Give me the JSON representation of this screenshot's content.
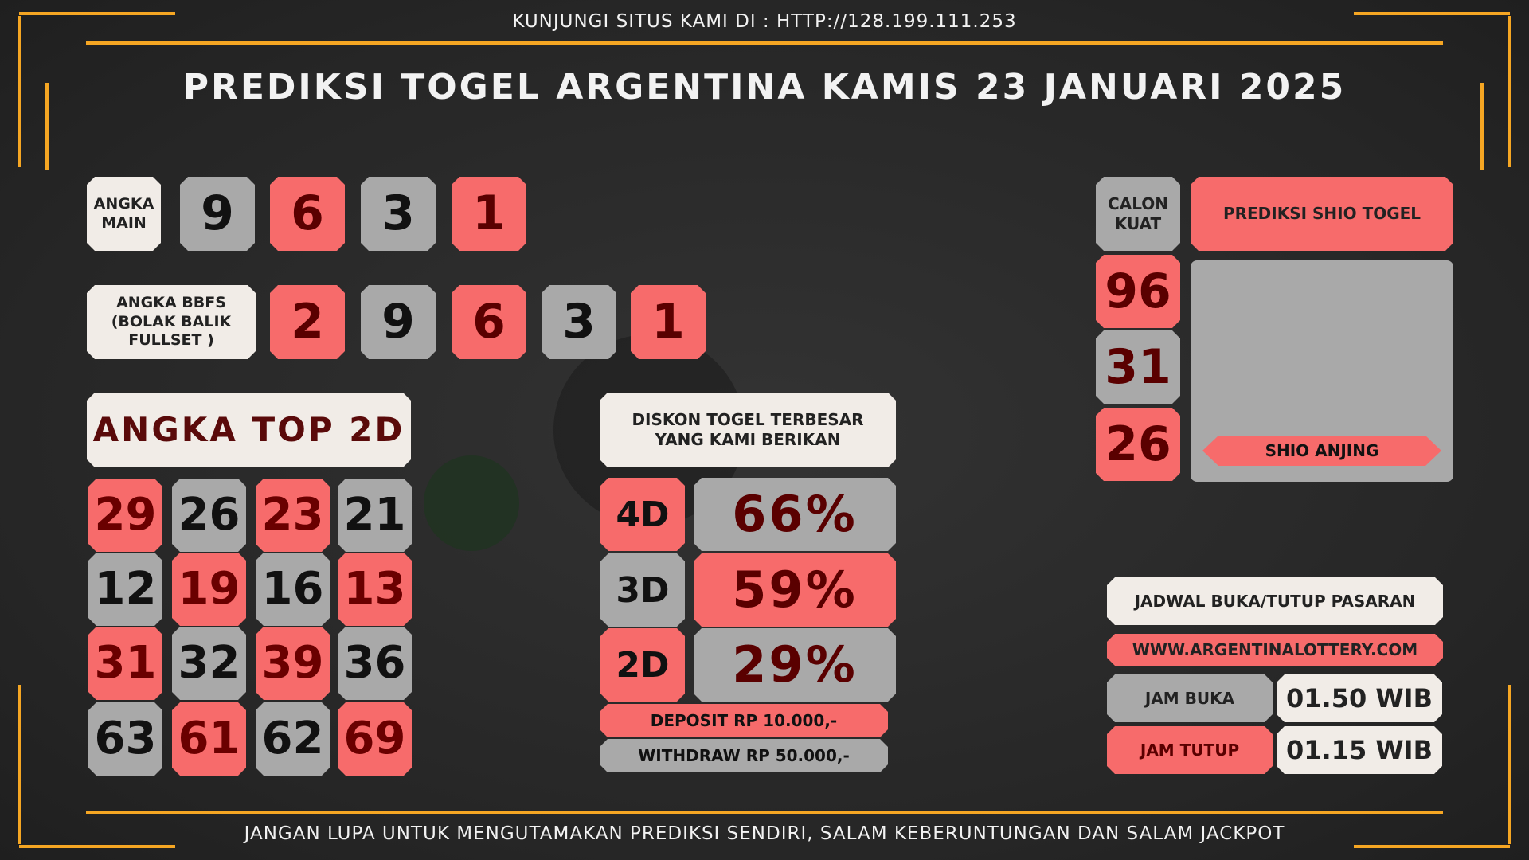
{
  "header": {
    "site": "KUNJUNGI SITUS KAMI DI : HTTP://128.199.111.253",
    "title": "PREDIKSI TOGEL ARGENTINA KAMIS 23 JANUARI 2025"
  },
  "angka_main": {
    "label": "ANGKA MAIN",
    "digits": [
      "9",
      "6",
      "3",
      "1"
    ]
  },
  "bbfs": {
    "label": "ANGKA BBFS (BOLAK BALIK FULLSET )",
    "digits": [
      "2",
      "9",
      "6",
      "3",
      "1"
    ]
  },
  "top2d": {
    "title": "ANGKA TOP 2D",
    "numbers": [
      "29",
      "26",
      "23",
      "21",
      "12",
      "19",
      "16",
      "13",
      "31",
      "32",
      "39",
      "36",
      "63",
      "61",
      "62",
      "69"
    ]
  },
  "diskon": {
    "title": "DISKON TOGEL TERBESAR YANG KAMI BERIKAN",
    "rows": [
      {
        "label": "4D",
        "value": "66%"
      },
      {
        "label": "3D",
        "value": "59%"
      },
      {
        "label": "2D",
        "value": "29%"
      }
    ],
    "deposit": "DEPOSIT RP 10.000,-",
    "withdraw": "WITHDRAW RP 50.000,-"
  },
  "calon": {
    "label": "CALON KUAT",
    "numbers": [
      "96",
      "31",
      "26"
    ]
  },
  "shio": {
    "title": "PREDIKSI SHIO TOGEL",
    "name": "SHIO ANJING"
  },
  "jadwal": {
    "title": "JADWAL BUKA/TUTUP PASARAN",
    "url": "WWW.ARGENTINALOTTERY.COM",
    "buka_label": "JAM BUKA",
    "buka_time": "01.50 WIB",
    "tutup_label": "JAM TUTUP",
    "tutup_time": "01.15 WIB"
  },
  "footer": "JANGAN LUPA UNTUK MENGUTAMAKAN PREDIKSI SENDIRI, SALAM KEBERUNTUNGAN DAN SALAM JACKPOT"
}
